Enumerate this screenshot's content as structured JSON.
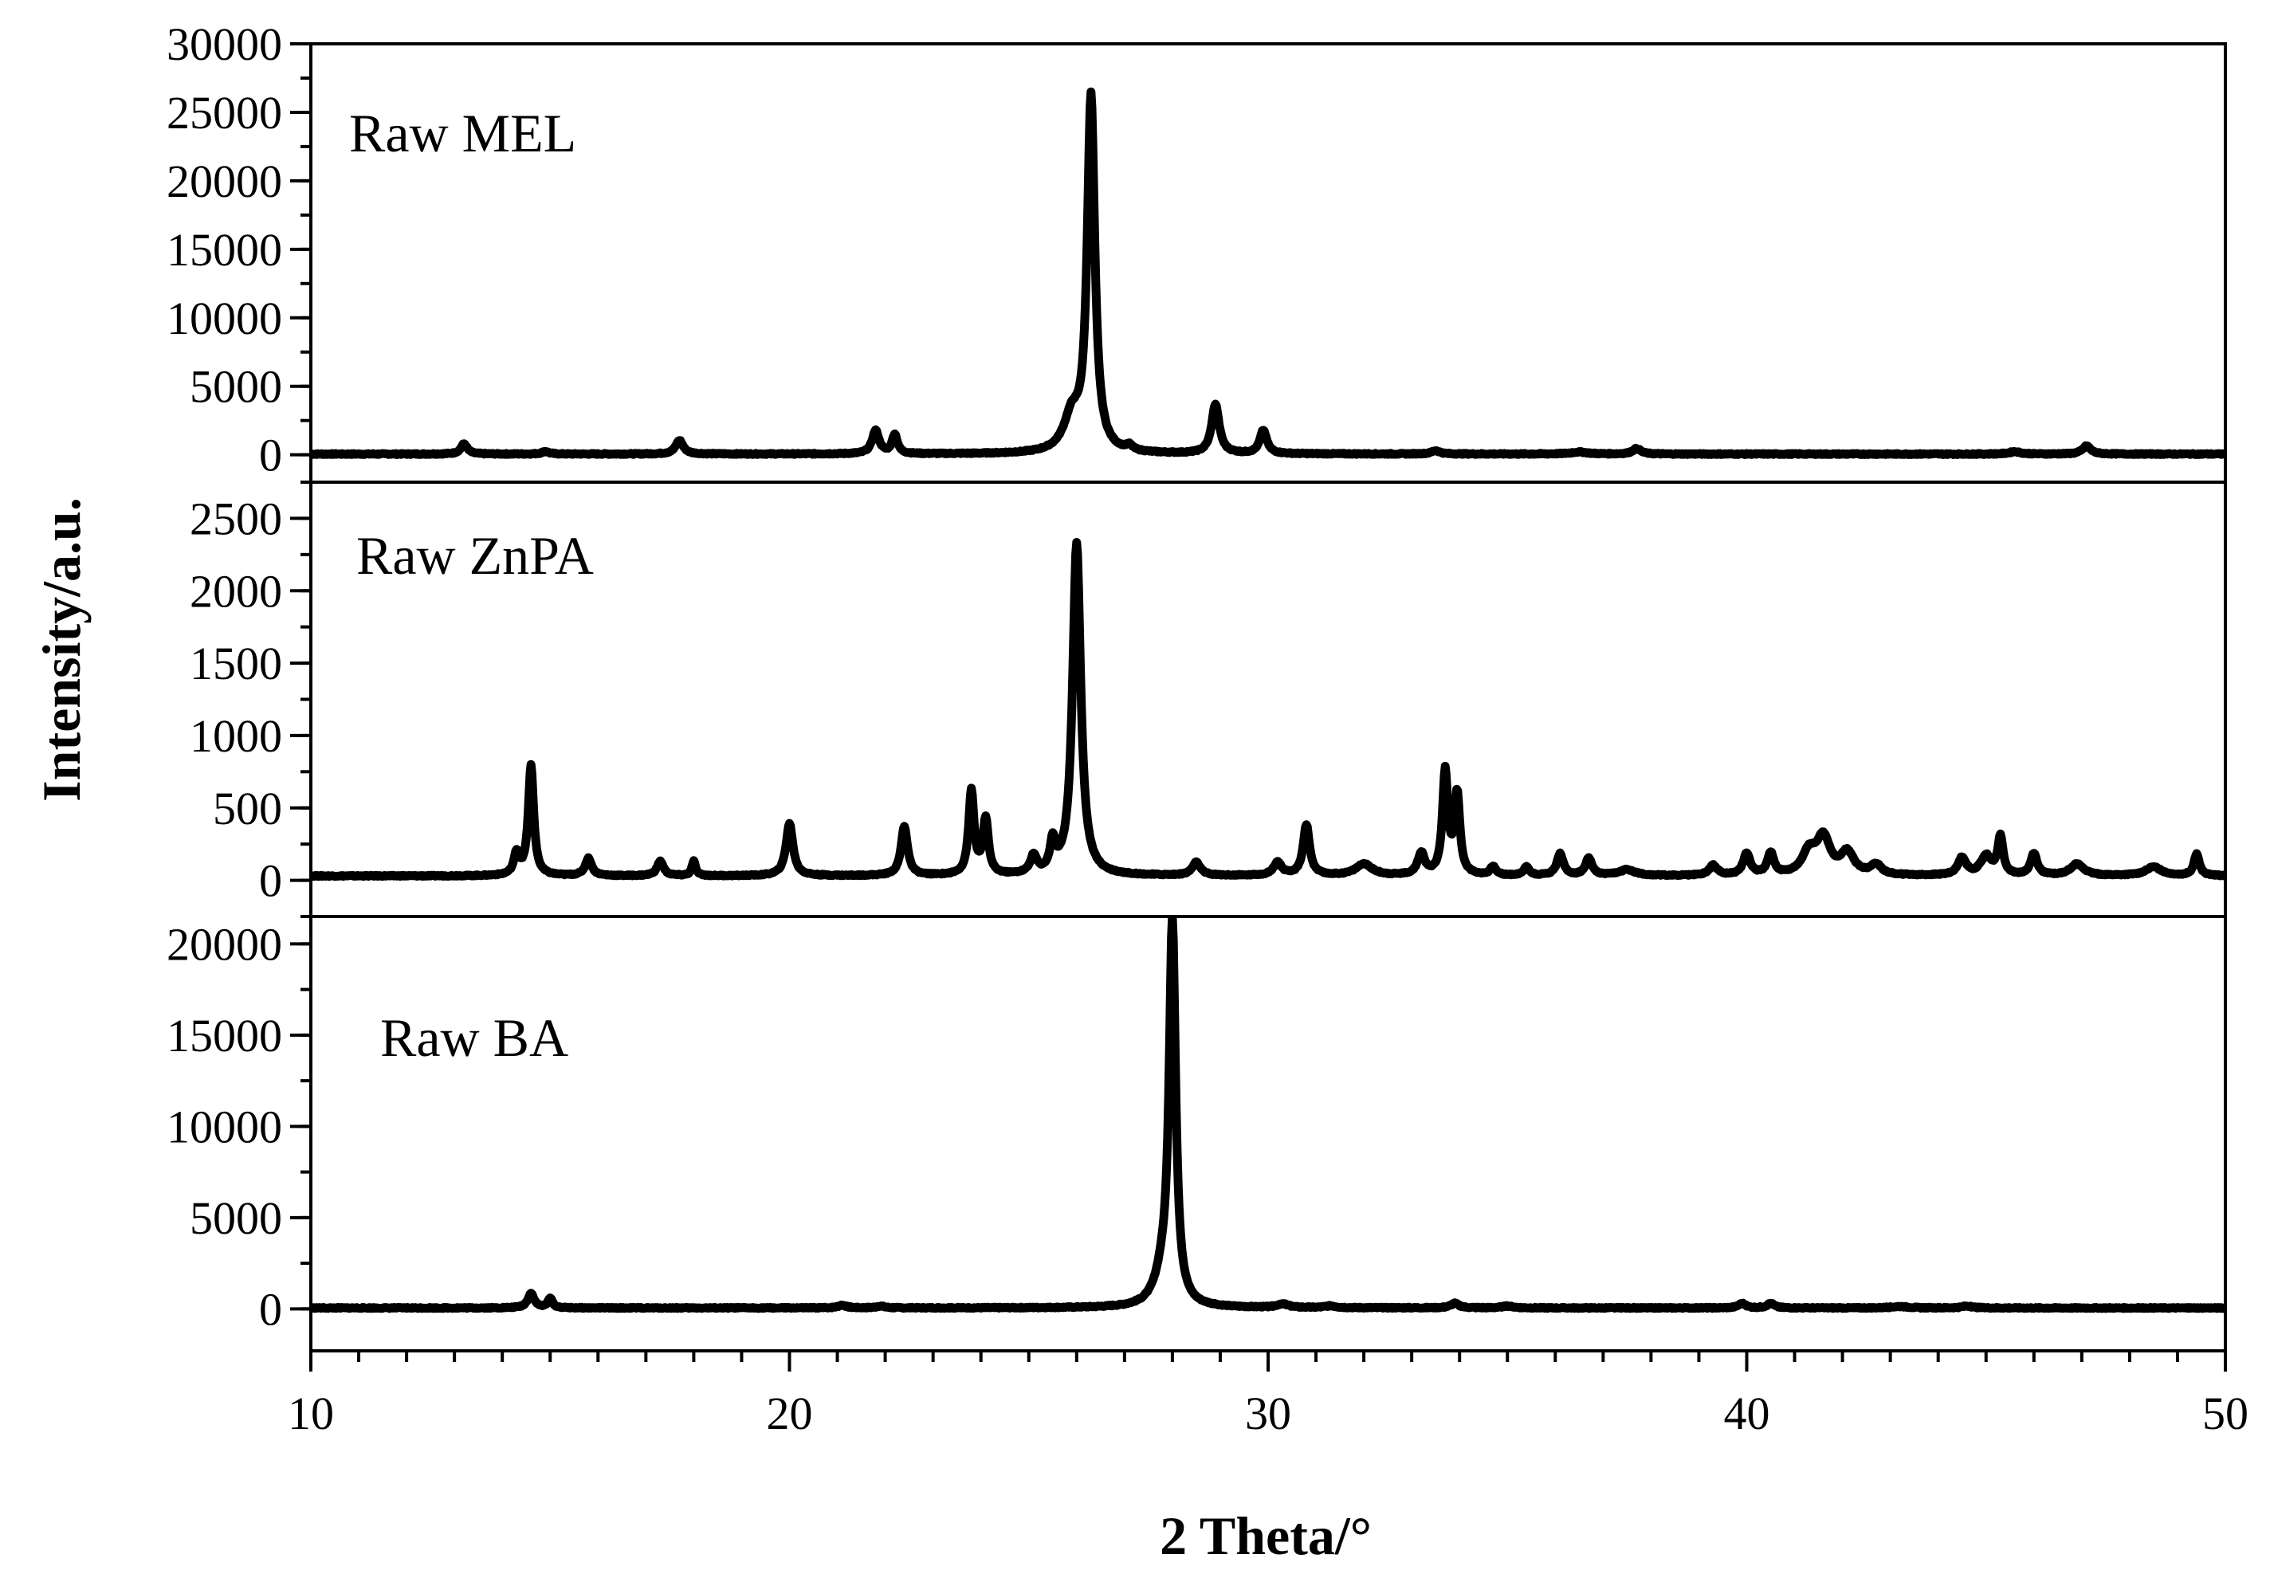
{
  "chart_data": {
    "type": "line",
    "xlabel": "2 Theta/°",
    "ylabel": "Intensity/a.u.",
    "xlim": [
      10,
      50
    ],
    "xticks": [
      10,
      20,
      30,
      40,
      50
    ],
    "x_minor_step": 1,
    "grid": false,
    "line_color": "#000000",
    "panels": [
      {
        "label": "Raw MEL",
        "ylim": [
          -2000,
          30000
        ],
        "yticks": [
          0,
          5000,
          10000,
          15000,
          20000,
          25000,
          30000
        ],
        "y_minor_step": 2500,
        "baseline": 50,
        "peaks": [
          {
            "x": 13.2,
            "y": 750,
            "w": 0.12
          },
          {
            "x": 14.9,
            "y": 200,
            "w": 0.12
          },
          {
            "x": 17.7,
            "y": 1000,
            "w": 0.14
          },
          {
            "x": 21.8,
            "y": 1700,
            "w": 0.13
          },
          {
            "x": 22.2,
            "y": 1400,
            "w": 0.1
          },
          {
            "x": 26.3,
            "y": 25900,
            "w": 0.14
          },
          {
            "x": 25.9,
            "y": 2500,
            "w": 0.3
          },
          {
            "x": 27.1,
            "y": 350,
            "w": 0.12
          },
          {
            "x": 28.9,
            "y": 3600,
            "w": 0.14
          },
          {
            "x": 29.9,
            "y": 1700,
            "w": 0.13
          },
          {
            "x": 33.5,
            "y": 250,
            "w": 0.15
          },
          {
            "x": 36.5,
            "y": 150,
            "w": 0.3
          },
          {
            "x": 37.7,
            "y": 400,
            "w": 0.15
          },
          {
            "x": 45.6,
            "y": 180,
            "w": 0.2
          },
          {
            "x": 47.1,
            "y": 600,
            "w": 0.15
          }
        ]
      },
      {
        "label": "Raw ZnPA",
        "ylim": [
          -250,
          2750
        ],
        "yticks": [
          0,
          500,
          1000,
          1500,
          2000,
          2500
        ],
        "y_minor_step": 250,
        "baseline": 30,
        "peaks": [
          {
            "x": 14.6,
            "y": 760,
            "w": 0.1
          },
          {
            "x": 14.3,
            "y": 150,
            "w": 0.1
          },
          {
            "x": 15.8,
            "y": 120,
            "w": 0.12
          },
          {
            "x": 17.3,
            "y": 100,
            "w": 0.12
          },
          {
            "x": 18.0,
            "y": 100,
            "w": 0.07
          },
          {
            "x": 20.0,
            "y": 360,
            "w": 0.13
          },
          {
            "x": 22.4,
            "y": 340,
            "w": 0.12
          },
          {
            "x": 23.8,
            "y": 580,
            "w": 0.1
          },
          {
            "x": 24.1,
            "y": 380,
            "w": 0.1
          },
          {
            "x": 25.1,
            "y": 120,
            "w": 0.12
          },
          {
            "x": 25.5,
            "y": 200,
            "w": 0.1
          },
          {
            "x": 26.0,
            "y": 2300,
            "w": 0.15
          },
          {
            "x": 28.5,
            "y": 90,
            "w": 0.15
          },
          {
            "x": 30.2,
            "y": 90,
            "w": 0.15
          },
          {
            "x": 30.8,
            "y": 350,
            "w": 0.12
          },
          {
            "x": 32.0,
            "y": 80,
            "w": 0.3
          },
          {
            "x": 33.2,
            "y": 150,
            "w": 0.13
          },
          {
            "x": 33.7,
            "y": 710,
            "w": 0.1
          },
          {
            "x": 33.95,
            "y": 550,
            "w": 0.1
          },
          {
            "x": 34.7,
            "y": 60,
            "w": 0.1
          },
          {
            "x": 35.4,
            "y": 60,
            "w": 0.1
          },
          {
            "x": 36.1,
            "y": 150,
            "w": 0.12
          },
          {
            "x": 36.7,
            "y": 120,
            "w": 0.12
          },
          {
            "x": 37.5,
            "y": 40,
            "w": 0.3
          },
          {
            "x": 39.3,
            "y": 70,
            "w": 0.15
          },
          {
            "x": 40.0,
            "y": 150,
            "w": 0.13
          },
          {
            "x": 40.5,
            "y": 150,
            "w": 0.12
          },
          {
            "x": 41.3,
            "y": 150,
            "w": 0.25
          },
          {
            "x": 41.6,
            "y": 250,
            "w": 0.25
          },
          {
            "x": 42.1,
            "y": 150,
            "w": 0.25
          },
          {
            "x": 42.7,
            "y": 70,
            "w": 0.2
          },
          {
            "x": 44.5,
            "y": 120,
            "w": 0.15
          },
          {
            "x": 45.0,
            "y": 130,
            "w": 0.2
          },
          {
            "x": 45.3,
            "y": 260,
            "w": 0.1
          },
          {
            "x": 46.0,
            "y": 150,
            "w": 0.12
          },
          {
            "x": 46.9,
            "y": 80,
            "w": 0.25
          },
          {
            "x": 48.5,
            "y": 60,
            "w": 0.3
          },
          {
            "x": 49.4,
            "y": 150,
            "w": 0.1
          }
        ]
      },
      {
        "label": "Raw BA",
        "ylim": [
          -2300,
          21500
        ],
        "yticks": [
          0,
          5000,
          10000,
          15000,
          20000
        ],
        "y_minor_step": 2500,
        "baseline": 50,
        "peaks": [
          {
            "x": 14.6,
            "y": 800,
            "w": 0.12
          },
          {
            "x": 15.0,
            "y": 550,
            "w": 0.08
          },
          {
            "x": 21.1,
            "y": 150,
            "w": 0.15
          },
          {
            "x": 21.9,
            "y": 100,
            "w": 0.15
          },
          {
            "x": 28.0,
            "y": 20700,
            "w": 0.12
          },
          {
            "x": 27.8,
            "y": 1500,
            "w": 0.3
          },
          {
            "x": 30.3,
            "y": 200,
            "w": 0.2
          },
          {
            "x": 31.3,
            "y": 100,
            "w": 0.2
          },
          {
            "x": 33.9,
            "y": 250,
            "w": 0.15
          },
          {
            "x": 35.0,
            "y": 100,
            "w": 0.2
          },
          {
            "x": 39.9,
            "y": 250,
            "w": 0.13
          },
          {
            "x": 40.5,
            "y": 250,
            "w": 0.13
          },
          {
            "x": 43.2,
            "y": 80,
            "w": 0.3
          },
          {
            "x": 44.6,
            "y": 100,
            "w": 0.2
          }
        ]
      }
    ]
  }
}
